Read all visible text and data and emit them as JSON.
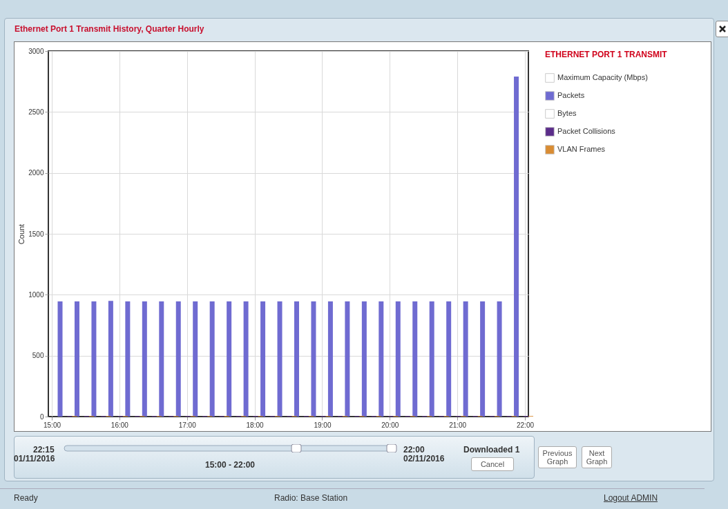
{
  "chart_data": {
    "type": "bar",
    "title": "Ethernet Port 1 Transmit History, Quarter Hourly",
    "ylabel": "Count",
    "legend_title": "ETHERNET PORT 1 TRANSMIT",
    "x": [
      15,
      15.25,
      15.5,
      15.75,
      16,
      16.25,
      16.5,
      16.75,
      17,
      17.25,
      17.5,
      17.75,
      18,
      18.25,
      18.5,
      18.75,
      19,
      19.25,
      19.5,
      19.75,
      20,
      20.25,
      20.5,
      20.75,
      21,
      21.25,
      21.5,
      21.75
    ],
    "series": [
      {
        "name": "Maximum Capacity (Mbps)",
        "color": "#ffffff",
        "values": [
          null,
          null,
          null,
          null,
          null,
          null,
          null,
          null,
          null,
          null,
          null,
          null,
          null,
          null,
          null,
          null,
          null,
          null,
          null,
          null,
          null,
          null,
          null,
          null,
          null,
          null,
          null,
          null
        ]
      },
      {
        "name": "Packets",
        "color": "#6f6bd1",
        "values": [
          945,
          945,
          945,
          950,
          945,
          945,
          945,
          945,
          945,
          945,
          945,
          945,
          945,
          945,
          945,
          945,
          945,
          945,
          945,
          945,
          945,
          945,
          945,
          945,
          945,
          945,
          945,
          2790
        ]
      },
      {
        "name": "Bytes",
        "color": "#ffffff",
        "values": [
          null,
          null,
          null,
          null,
          null,
          null,
          null,
          null,
          null,
          null,
          null,
          null,
          null,
          null,
          null,
          null,
          null,
          null,
          null,
          null,
          null,
          null,
          null,
          null,
          null,
          null,
          null,
          null
        ]
      },
      {
        "name": "Packet Collisions",
        "color": "#5b2d8a",
        "values": [
          5,
          5,
          5,
          5,
          5,
          5,
          5,
          5,
          5,
          5,
          5,
          5,
          5,
          5,
          5,
          5,
          5,
          5,
          5,
          5,
          5,
          5,
          5,
          5,
          5,
          5,
          5,
          5
        ]
      },
      {
        "name": "VLAN Frames",
        "color": "#d98c33",
        "values": [
          5,
          5,
          5,
          5,
          5,
          5,
          5,
          5,
          5,
          5,
          5,
          5,
          5,
          5,
          5,
          5,
          5,
          5,
          5,
          5,
          5,
          5,
          5,
          5,
          5,
          5,
          5,
          5
        ]
      }
    ],
    "xlim": [
      15,
      22
    ],
    "xticks": [
      {
        "value": 15,
        "label": "15:00"
      },
      {
        "value": 16,
        "label": "16:00"
      },
      {
        "value": 17,
        "label": "17:00"
      },
      {
        "value": 18,
        "label": "18:00"
      },
      {
        "value": 19,
        "label": "19:00"
      },
      {
        "value": 20,
        "label": "20:00"
      },
      {
        "value": 21,
        "label": "21:00"
      },
      {
        "value": 22,
        "label": "22:00"
      }
    ],
    "ylim": [
      0,
      3000
    ],
    "yticks": [
      0,
      500,
      1000,
      1500,
      2000,
      2500,
      3000
    ],
    "grid": true,
    "legend": "right",
    "annotations": [
      "22:15",
      "01/11/2016",
      "22:00",
      "02/11/2016",
      "15:00 - 22:00",
      "Downloaded 1",
      "Cancel",
      "Previous Graph",
      "Next Graph",
      "Ready",
      "Radio: Base Station",
      "Logout ADMIN"
    ]
  }
}
